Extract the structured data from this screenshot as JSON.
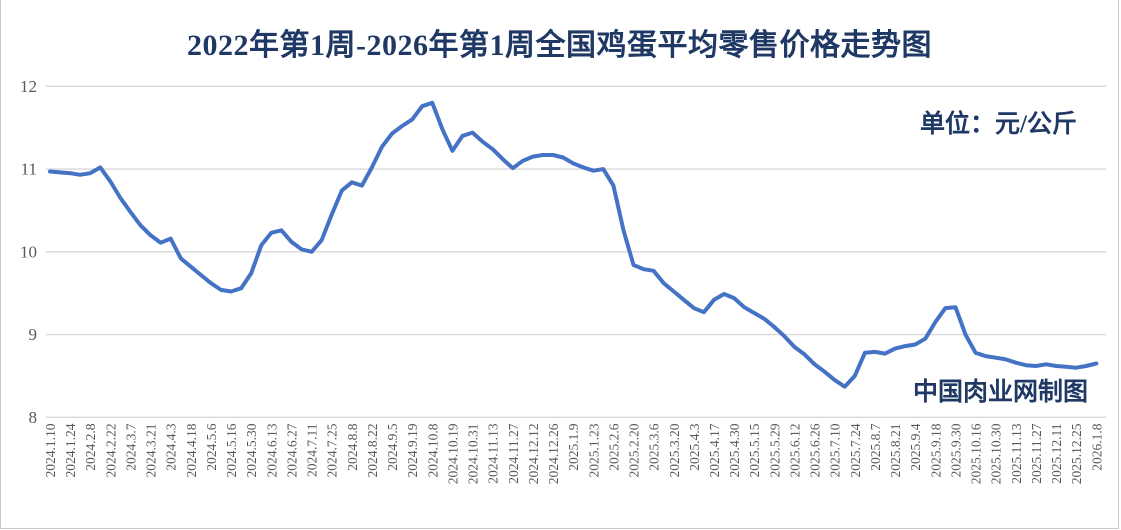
{
  "page": {
    "title": "2022年第1周-2026年第1周全国鸡蛋平均零售价格走势图",
    "unit_label": "单位：元/公斤",
    "watermark": "中国肉业网制图"
  },
  "colors": {
    "title_text": "#1f3864",
    "line": "#4472c4",
    "gridline": "#d9d9d9",
    "axis_text": "#595959",
    "background": "#ffffff"
  },
  "chart_data": {
    "type": "line",
    "title": "2022年第1周-2026年第1周全国鸡蛋平均零售价格走势图",
    "ylabel": "元/公斤",
    "ylim": [
      8,
      12
    ],
    "y_ticks": [
      12,
      11,
      10,
      9,
      8
    ],
    "grid": "horizontal",
    "legend": "none",
    "points_per_x_tick": 2,
    "x_tick_labels": [
      "2024.1.10",
      "2024.1.24",
      "2024.2.8",
      "2024.2.22",
      "2024.3.7",
      "2024.3.21",
      "2024.4.3",
      "2024.4.18",
      "2024.5.6",
      "2024.5.16",
      "2024.5.30",
      "2024.6.13",
      "2024.6.27",
      "2024.7.11",
      "2024.7.25",
      "2024.8.8",
      "2024.8.22",
      "2024.9.5",
      "2024.9.19",
      "2024.10.8",
      "2024.10.19",
      "2024.10.31",
      "2024.11.13",
      "2024.11.27",
      "2024.12.12",
      "2024.12.26",
      "2025.1.9",
      "2025.1.23",
      "2025.2.6",
      "2025.2.20",
      "2025.3.6",
      "2025.3.20",
      "2025.4.3",
      "2025.4.17",
      "2025.4.30",
      "2025.5.15",
      "2025.5.29",
      "2025.6.12",
      "2025.6.26",
      "2025.7.10",
      "2025.7.24",
      "2025.8.7",
      "2025.8.21",
      "2025.9.4",
      "2025.9.18",
      "2025.9.30",
      "2025.10.16",
      "2025.10.30",
      "2025.11.13",
      "2025.11.27",
      "2025.12.11",
      "2025.12.25",
      "2026.1.8"
    ],
    "series": [
      {
        "name": "全国鸡蛋平均零售价格",
        "values": [
          10.97,
          10.96,
          10.95,
          10.93,
          10.95,
          11.02,
          10.85,
          10.65,
          10.48,
          10.32,
          10.2,
          10.11,
          10.16,
          9.92,
          9.82,
          9.72,
          9.62,
          9.54,
          9.52,
          9.56,
          9.74,
          10.08,
          10.23,
          10.26,
          10.12,
          10.03,
          10.0,
          10.14,
          10.45,
          10.74,
          10.84,
          10.8,
          11.02,
          11.27,
          11.43,
          11.52,
          11.6,
          11.76,
          11.8,
          11.48,
          11.22,
          11.4,
          11.44,
          11.33,
          11.24,
          11.12,
          11.01,
          11.1,
          11.15,
          11.17,
          11.17,
          11.14,
          11.07,
          11.02,
          10.98,
          11.0,
          10.8,
          10.26,
          9.84,
          9.79,
          9.77,
          9.62,
          9.52,
          9.42,
          9.32,
          9.27,
          9.42,
          9.49,
          9.44,
          9.33,
          9.26,
          9.19,
          9.09,
          8.98,
          8.85,
          8.76,
          8.64,
          8.55,
          8.45,
          8.37,
          8.5,
          8.78,
          8.79,
          8.77,
          8.83,
          8.86,
          8.88,
          8.95,
          9.15,
          9.32,
          9.33,
          9.0,
          8.78,
          8.74,
          8.72,
          8.7,
          8.66,
          8.63,
          8.62,
          8.64,
          8.62,
          8.61,
          8.6,
          8.62,
          8.65
        ]
      }
    ]
  }
}
